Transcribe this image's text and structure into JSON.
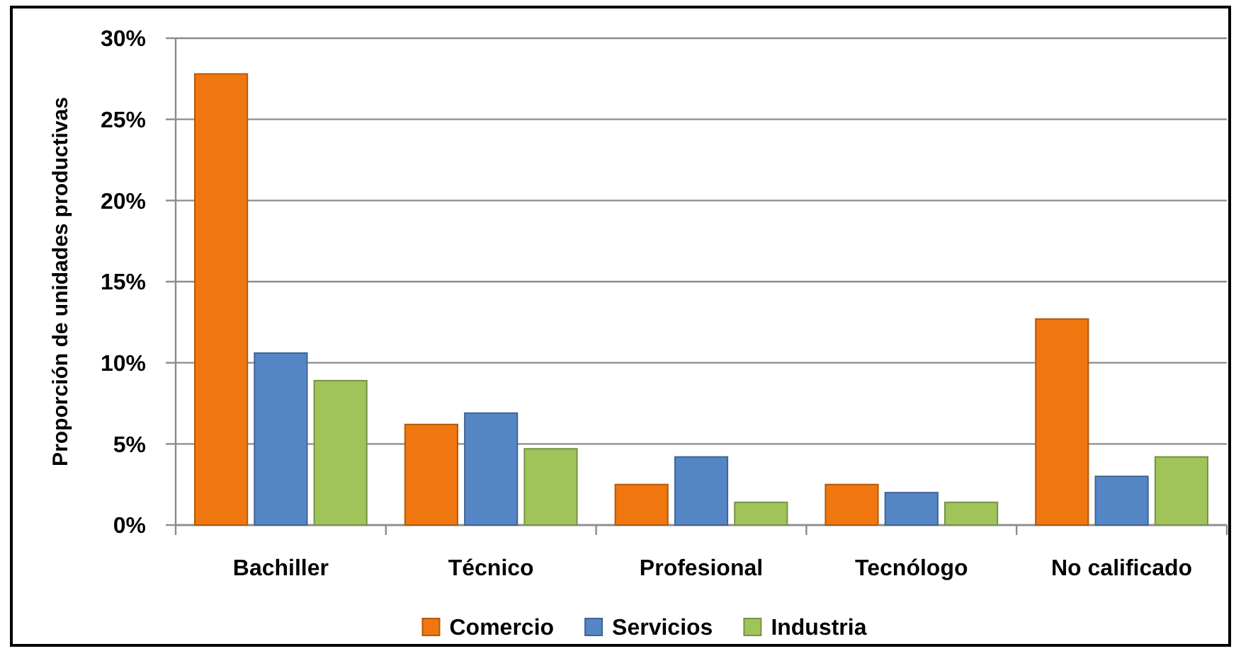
{
  "chart_data": {
    "type": "bar",
    "ylabel": "Proporción de unidades productivas",
    "categories": [
      "Bachiller",
      "Técnico",
      "Profesional",
      "Tecnólogo",
      "No calificado"
    ],
    "series": [
      {
        "name": "Comercio",
        "color": "#f0770f",
        "values": [
          27.8,
          6.2,
          2.5,
          2.5,
          12.7
        ]
      },
      {
        "name": "Servicios",
        "color": "#5586c5",
        "values": [
          10.6,
          6.9,
          4.2,
          2.0,
          3.0
        ]
      },
      {
        "name": "Industria",
        "color": "#a0c35a",
        "values": [
          8.9,
          4.7,
          1.4,
          1.4,
          4.2
        ]
      }
    ],
    "ylim": [
      0,
      30
    ],
    "yticks": [
      {
        "value": 0,
        "label": "0%"
      },
      {
        "value": 5,
        "label": "5%"
      },
      {
        "value": 10,
        "label": "10%"
      },
      {
        "value": 15,
        "label": "15%"
      },
      {
        "value": 20,
        "label": "20%"
      },
      {
        "value": 25,
        "label": "25%"
      },
      {
        "value": 30,
        "label": "30%"
      }
    ],
    "grid": "y",
    "legend": "bottom"
  }
}
